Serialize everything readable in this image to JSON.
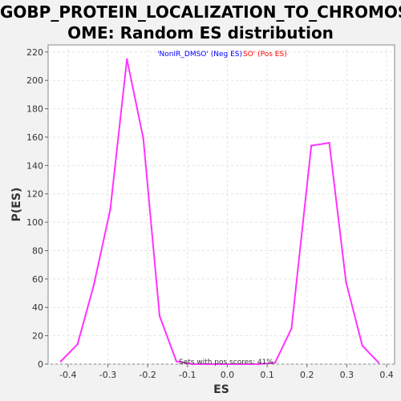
{
  "chart_data": {
    "type": "line",
    "title_lines": [
      "GOBP_PROTEIN_LOCALIZATION_TO_CHROMOS",
      "OME: Random ES distribution"
    ],
    "xlabel": "ES",
    "ylabel": "P(ES)",
    "xlim": [
      -0.45,
      0.42
    ],
    "ylim": [
      0,
      225
    ],
    "xticks": [
      -0.4,
      -0.3,
      -0.2,
      -0.1,
      0.0,
      0.1,
      0.2,
      0.3,
      0.4
    ],
    "xtick_labels": [
      "-0.4",
      "-0.3",
      "-0.2",
      "-0.1",
      "0.0",
      "0.1",
      "0.2",
      "0.3",
      "0.4"
    ],
    "yticks": [
      0,
      20,
      40,
      60,
      80,
      100,
      120,
      140,
      160,
      180,
      200,
      220
    ],
    "ytick_labels": [
      "0",
      "20",
      "40",
      "60",
      "80",
      "100",
      "120",
      "140",
      "160",
      "180",
      "200",
      "220"
    ],
    "grid": true,
    "legend": {
      "placement": "top-center",
      "neg_label": "'NonIR_DMSO' (Neg ES)",
      "pos_label": "SO' (Pos ES)",
      "neg_color": "#0000ff",
      "pos_color": "#ff0000"
    },
    "annotation": "Sets with pos scores: 41%",
    "line_color": "#ff33ff",
    "series": [
      {
        "x": [
          -0.418,
          -0.376,
          -0.335,
          -0.294,
          -0.252,
          -0.211,
          -0.17,
          -0.128,
          -0.087,
          -0.046,
          -0.004,
          0.037,
          0.078,
          0.12,
          0.161,
          0.211,
          0.256,
          0.298,
          0.339,
          0.38
        ],
        "y": [
          2,
          14,
          56,
          109,
          215,
          159,
          34,
          2,
          0,
          0,
          0,
          0,
          0,
          1,
          25,
          154,
          156,
          58,
          13,
          1
        ]
      }
    ]
  }
}
